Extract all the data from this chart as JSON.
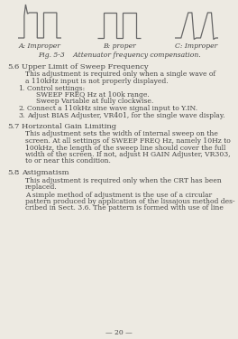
{
  "background_color": "#edeae2",
  "title_fig": "Fig. 5-3    Attenuator frequency compensation.",
  "label_a": "A: Improper",
  "label_b": "B: proper",
  "label_c": "C: Improper",
  "section_56_head": "5.6   Upper Limit of Sweep Frequency",
  "section_57_head": "5.7   Horizontal Gain Limiting",
  "section_58_head": "5.8   Astigmatism",
  "page_num": "— 20 —",
  "wave_color": "#666666",
  "text_color": "#444444"
}
